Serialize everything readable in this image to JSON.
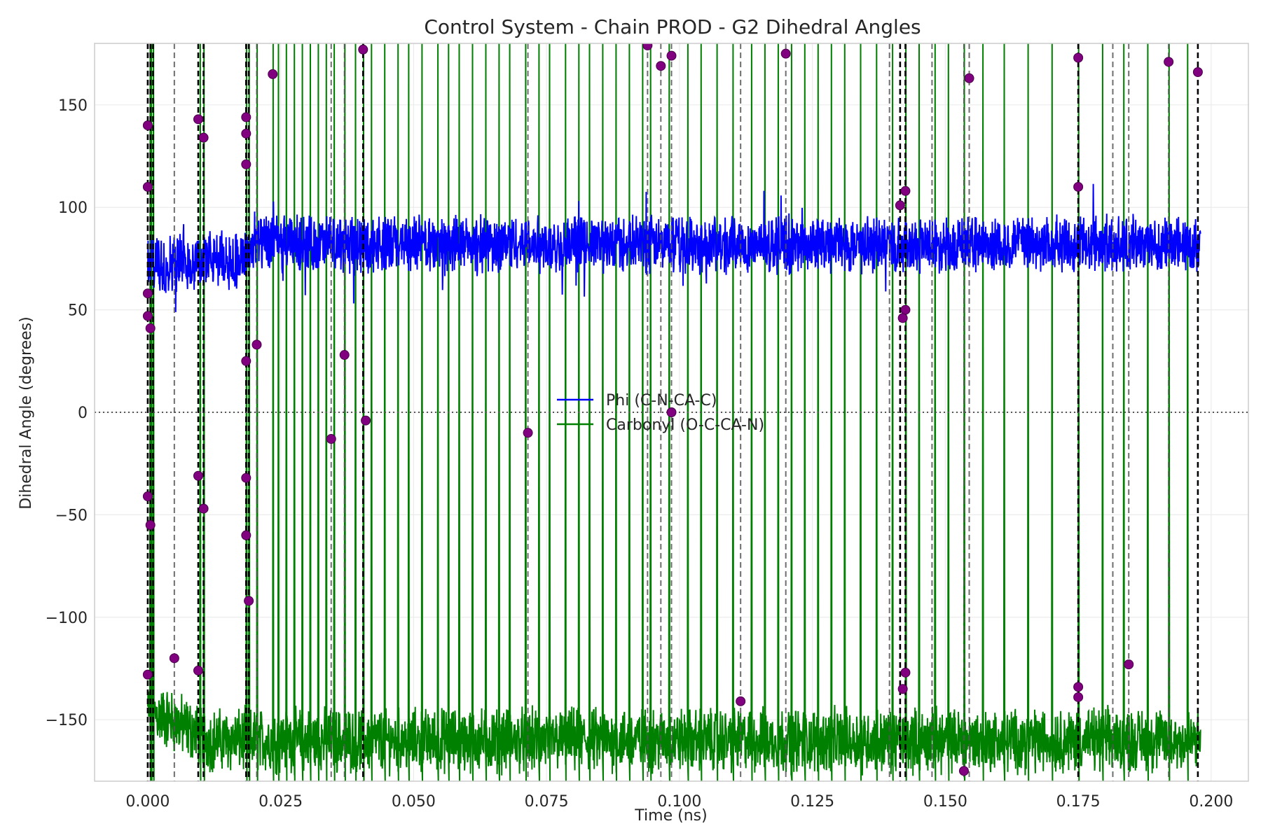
{
  "chart_data": {
    "type": "line",
    "title": "Control System - Chain PROD - G2 Dihedral Angles",
    "xlabel": "Time (ns)",
    "ylabel": "Dihedral Angle (degrees)",
    "xlim": [
      -0.01,
      0.207
    ],
    "ylim": [
      -180,
      180
    ],
    "x_ticks": [
      0.0,
      0.025,
      0.05,
      0.075,
      0.1,
      0.125,
      0.15,
      0.175,
      0.2
    ],
    "x_tick_labels": [
      "0.000",
      "0.025",
      "0.050",
      "0.075",
      "0.100",
      "0.125",
      "0.150",
      "0.175",
      "0.200"
    ],
    "y_ticks": [
      -150,
      -100,
      -50,
      0,
      50,
      100,
      150
    ],
    "y_tick_labels": [
      "−150",
      "−100",
      "−50",
      "0",
      "50",
      "100",
      "150"
    ],
    "grid": true,
    "legend_position": "center",
    "series": [
      {
        "name": "Phi (C-N-CA-C)",
        "color": "#0000ff",
        "x_range": [
          0.0,
          0.198
        ],
        "description_levels": [
          {
            "x": 0.0,
            "mean": 72,
            "amp": 12
          },
          {
            "x": 0.018,
            "mean": 75,
            "amp": 12
          },
          {
            "x": 0.02,
            "mean": 82,
            "amp": 12
          },
          {
            "x": 0.198,
            "mean": 82,
            "amp": 11
          }
        ]
      },
      {
        "name": "Carbonyl (O-C-CA-N)",
        "color": "#008000",
        "x_range": [
          0.0,
          0.198
        ],
        "baseline_mean": -160,
        "baseline_amp": 12,
        "flip_times": [
          0.0004,
          0.0006,
          0.001,
          0.0098,
          0.0105,
          0.0185,
          0.019,
          0.0205,
          0.0235,
          0.0245,
          0.026,
          0.0275,
          0.029,
          0.0305,
          0.032,
          0.0335,
          0.035,
          0.037,
          0.039,
          0.0405,
          0.042,
          0.0445,
          0.047,
          0.049,
          0.0515,
          0.0545,
          0.0565,
          0.0585,
          0.061,
          0.0635,
          0.066,
          0.068,
          0.071,
          0.0735,
          0.0755,
          0.0785,
          0.081,
          0.083,
          0.0855,
          0.088,
          0.0905,
          0.093,
          0.0945,
          0.098,
          0.1015,
          0.104,
          0.107,
          0.11,
          0.1135,
          0.116,
          0.1185,
          0.121,
          0.1235,
          0.126,
          0.1285,
          0.131,
          0.134,
          0.137,
          0.14,
          0.1425,
          0.145,
          0.148,
          0.1505,
          0.1535,
          0.157,
          0.161,
          0.1655,
          0.17,
          0.175,
          0.1795,
          0.1835,
          0.188,
          0.192,
          0.1955
        ]
      }
    ],
    "transition_markers": [
      {
        "x": 0.0,
        "y": 140
      },
      {
        "x": 0.0,
        "y": 110
      },
      {
        "x": 0.0,
        "y": 58
      },
      {
        "x": 0.0,
        "y": 47
      },
      {
        "x": 0.0005,
        "y": 41
      },
      {
        "x": 0.0,
        "y": -41
      },
      {
        "x": 0.0005,
        "y": -55
      },
      {
        "x": 0.0,
        "y": -128
      },
      {
        "x": 0.005,
        "y": -120
      },
      {
        "x": 0.0095,
        "y": 143
      },
      {
        "x": 0.0105,
        "y": 134
      },
      {
        "x": 0.0095,
        "y": -31
      },
      {
        "x": 0.0105,
        "y": -47
      },
      {
        "x": 0.0095,
        "y": -126
      },
      {
        "x": 0.0185,
        "y": 144
      },
      {
        "x": 0.0185,
        "y": 136
      },
      {
        "x": 0.0185,
        "y": 121
      },
      {
        "x": 0.0185,
        "y": 25
      },
      {
        "x": 0.0185,
        "y": -32
      },
      {
        "x": 0.0185,
        "y": -60
      },
      {
        "x": 0.019,
        "y": -92
      },
      {
        "x": 0.0205,
        "y": 33
      },
      {
        "x": 0.0235,
        "y": 165
      },
      {
        "x": 0.0345,
        "y": -13
      },
      {
        "x": 0.037,
        "y": 28
      },
      {
        "x": 0.0405,
        "y": 177
      },
      {
        "x": 0.041,
        "y": -4
      },
      {
        "x": 0.0715,
        "y": -10
      },
      {
        "x": 0.094,
        "y": 179
      },
      {
        "x": 0.0965,
        "y": 169
      },
      {
        "x": 0.0985,
        "y": 174
      },
      {
        "x": 0.0985,
        "y": 0
      },
      {
        "x": 0.1115,
        "y": -141
      },
      {
        "x": 0.12,
        "y": 175
      },
      {
        "x": 0.1415,
        "y": 101
      },
      {
        "x": 0.1425,
        "y": 108
      },
      {
        "x": 0.1425,
        "y": 50
      },
      {
        "x": 0.142,
        "y": 46
      },
      {
        "x": 0.1425,
        "y": -127
      },
      {
        "x": 0.142,
        "y": -135
      },
      {
        "x": 0.1535,
        "y": -175
      },
      {
        "x": 0.1545,
        "y": 163
      },
      {
        "x": 0.175,
        "y": 173
      },
      {
        "x": 0.175,
        "y": 110
      },
      {
        "x": 0.175,
        "y": -134
      },
      {
        "x": 0.175,
        "y": -139
      },
      {
        "x": 0.1845,
        "y": -123
      },
      {
        "x": 0.192,
        "y": 171
      },
      {
        "x": 0.1975,
        "y": 166
      }
    ],
    "transition_lines_bold": [
      0.0,
      0.0005,
      0.001,
      0.0095,
      0.0105,
      0.0185,
      0.019,
      0.0405,
      0.1415,
      0.1425,
      0.175,
      0.1975
    ],
    "transition_lines_light": [
      0.005,
      0.0205,
      0.0345,
      0.037,
      0.0715,
      0.094,
      0.0965,
      0.0985,
      0.1115,
      0.12,
      0.1395,
      0.1475,
      0.1535,
      0.1545,
      0.1815,
      0.1845,
      0.192
    ],
    "reference_line_y": 0
  }
}
